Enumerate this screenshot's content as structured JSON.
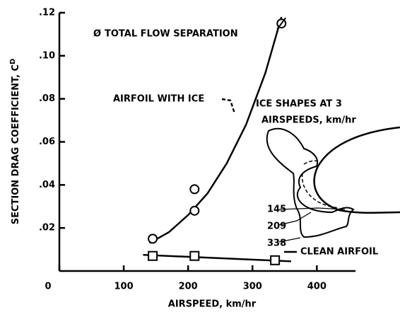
{
  "chart_data": {
    "type": "scatter",
    "x_label": "AIRSPEED, km/hr",
    "y_label": "SECTION DRAG COEFFICIENT, C",
    "y_label_sub": "D",
    "xlim": [
      0,
      460
    ],
    "xticks": [
      0,
      100,
      200,
      300,
      400
    ],
    "ylim": [
      0,
      0.12
    ],
    "yticks": [
      {
        "value": 0.02,
        "label": ".02"
      },
      {
        "value": 0.04,
        "label": ".04"
      },
      {
        "value": 0.06,
        "label": ".06"
      },
      {
        "value": 0.08,
        "label": ".08"
      },
      {
        "value": 0.1,
        "label": ".10"
      },
      {
        "value": 0.12,
        "label": ".12"
      }
    ],
    "legend": {
      "symbol": "Ø",
      "text": "TOTAL FLOW SEPARATION"
    },
    "series": [
      {
        "name": "AIRFOIL WITH ICE",
        "marker": "circle",
        "color": "#000000",
        "x": [
          145,
          210,
          210,
          345
        ],
        "values": [
          0.015,
          0.028,
          0.038,
          0.115
        ],
        "separated": [
          false,
          false,
          false,
          true
        ],
        "curve": {
          "x": [
            140,
            170,
            200,
            230,
            260,
            290,
            320,
            345
          ],
          "values": [
            0.013,
            0.018,
            0.026,
            0.036,
            0.05,
            0.068,
            0.092,
            0.118
          ]
        }
      },
      {
        "name": "CLEAN AIRFOIL",
        "marker": "square",
        "color": "#000000",
        "x": [
          145,
          210,
          335
        ],
        "values": [
          0.007,
          0.007,
          0.005
        ],
        "curve": {
          "x": [
            130,
            360
          ],
          "values": [
            0.0075,
            0.0045
          ]
        }
      }
    ],
    "annotations": {
      "ice_shapes": [
        "ICE SHAPES AT 3",
        "AIRSPEEDS, km/hr"
      ],
      "speeds": [
        "145",
        "209",
        "338"
      ]
    }
  }
}
